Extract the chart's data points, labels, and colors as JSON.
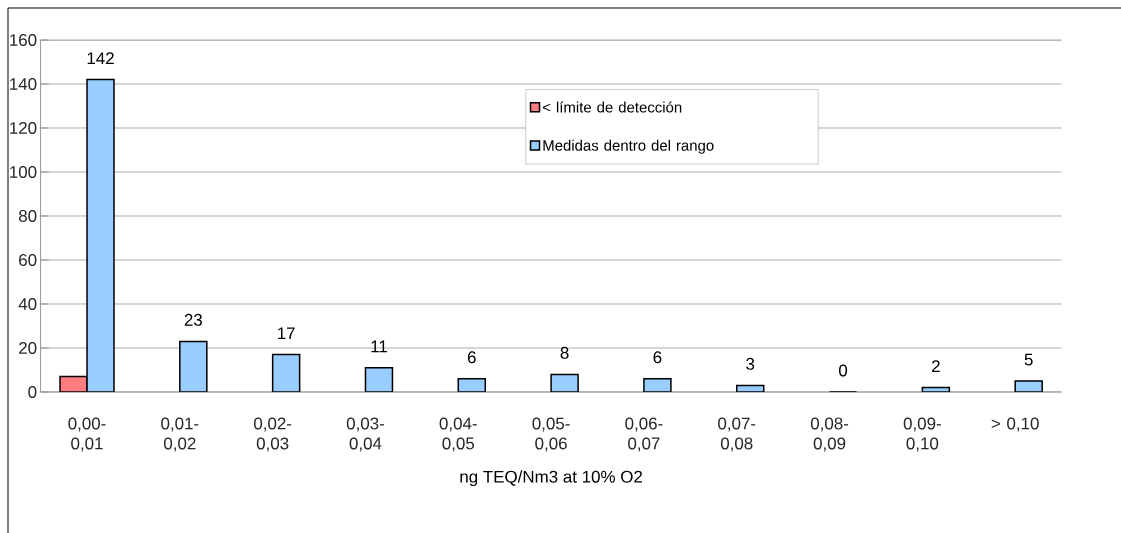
{
  "chart_data": {
    "type": "bar",
    "xlabel": "ng TEQ/Nm3 at 10% O2",
    "categories": [
      "0,00-0,01",
      "0,01-0,02",
      "0,02-0,03",
      "0,03-0,04",
      "0,04-0,05",
      "0,05-0,06",
      "0,06-0,07",
      "0,07-0,08",
      "0,08-0,09",
      "0,09-0,10",
      "> 0,10"
    ],
    "series": [
      {
        "name": "< límite de detección",
        "color": "#ff7c80",
        "values": [
          7,
          null,
          null,
          null,
          null,
          null,
          null,
          null,
          null,
          null,
          null
        ]
      },
      {
        "name": "Medidas dentro del rango",
        "color": "#99ccff",
        "values": [
          142,
          23,
          17,
          11,
          6,
          8,
          6,
          3,
          0,
          2,
          5
        ],
        "value_labels": [
          "142",
          "23",
          "17",
          "11",
          "6",
          "8",
          "6",
          "3",
          "0",
          "2",
          "5"
        ]
      }
    ],
    "ylim": [
      0,
      160
    ],
    "yticks": [
      0,
      20,
      40,
      60,
      80,
      100,
      120,
      140,
      160
    ],
    "grid": "y",
    "legend": "top right"
  }
}
